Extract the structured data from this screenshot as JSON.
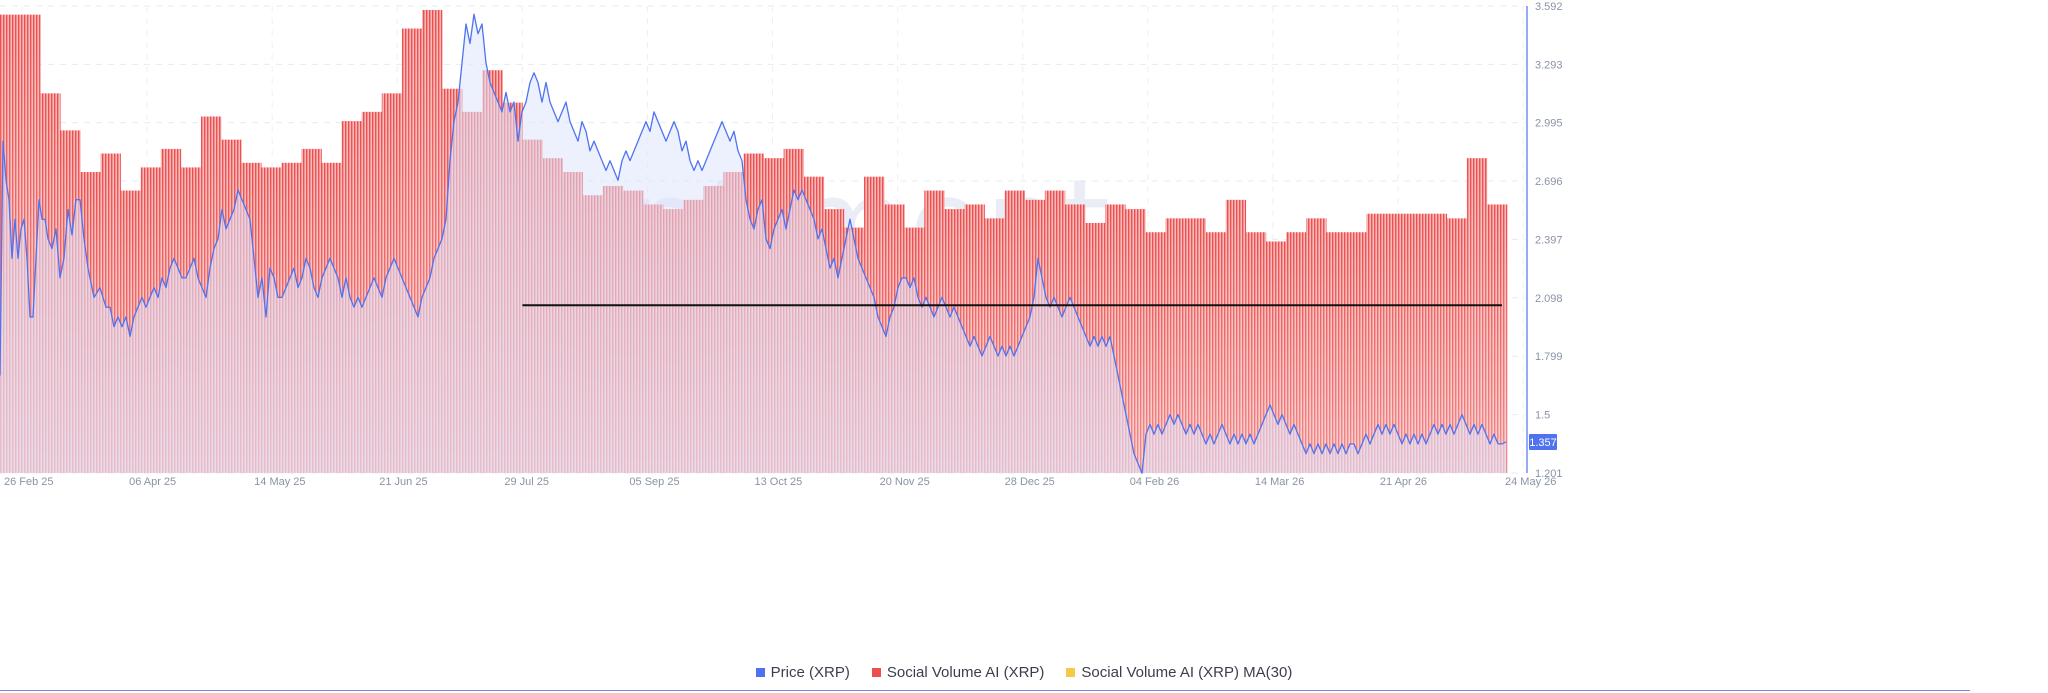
{
  "chart_data": {
    "type": "bar",
    "watermark": "santiment",
    "x_ticks": [
      "26 Feb 25",
      "06 Apr 25",
      "14 May 25",
      "21 Jun 25",
      "29 Jul 25",
      "05 Sep 25",
      "13 Oct 25",
      "20 Nov 25",
      "28 Dec 25",
      "04 Feb 26",
      "14 Mar 26",
      "21 Apr 26",
      "24 May 26"
    ],
    "y_right_ticks": [
      "3.592",
      "3.293",
      "2.995",
      "2.696",
      "2.397",
      "2.098",
      "1.799",
      "1.5",
      "1.201"
    ],
    "y_right_range": [
      1.201,
      3.592
    ],
    "current_price_label": "1.357",
    "resistance_level": 2.06,
    "resistance_start_index": 26,
    "grid": true,
    "legend_position": "bottom",
    "colors": {
      "price": "#4f73f0",
      "price_fill": "#dfe4fb",
      "social_volume": "#ee4e4e",
      "social_volume_ma": "#f7c948",
      "resistance": "#111111"
    },
    "social_volume_relative": [
      0.99,
      0.99,
      0.82,
      0.74,
      0.65,
      0.69,
      0.61,
      0.66,
      0.7,
      0.66,
      0.77,
      0.72,
      0.67,
      0.66,
      0.67,
      0.7,
      0.67,
      0.76,
      0.78,
      0.82,
      0.96,
      1.0,
      0.83,
      0.78,
      0.87,
      0.8,
      0.72,
      0.68,
      0.65,
      0.6,
      0.62,
      0.61,
      0.58,
      0.57,
      0.59,
      0.62,
      0.65,
      0.69,
      0.68,
      0.7,
      0.64,
      0.57,
      0.53,
      0.64,
      0.58,
      0.53,
      0.61,
      0.57,
      0.58,
      0.55,
      0.61,
      0.59,
      0.61,
      0.58,
      0.54,
      0.58,
      0.57,
      0.52,
      0.55,
      0.55,
      0.52,
      0.59,
      0.52,
      0.5,
      0.52,
      0.55,
      0.52,
      0.52,
      0.56,
      0.56,
      0.56,
      0.56,
      0.55,
      0.68,
      0.58
    ],
    "price_series": [
      [
        0,
        1.7
      ],
      [
        3,
        2.9
      ],
      [
        6,
        2.7
      ],
      [
        9,
        2.6
      ],
      [
        12,
        2.3
      ],
      [
        15,
        2.5
      ],
      [
        18,
        2.3
      ],
      [
        21,
        2.45
      ],
      [
        24,
        2.5
      ],
      [
        27,
        2.3
      ],
      [
        30,
        2.0
      ],
      [
        33,
        2.0
      ],
      [
        36,
        2.3
      ],
      [
        39,
        2.6
      ],
      [
        42,
        2.5
      ],
      [
        45,
        2.5
      ],
      [
        48,
        2.4
      ],
      [
        52,
        2.35
      ],
      [
        56,
        2.45
      ],
      [
        60,
        2.2
      ],
      [
        64,
        2.3
      ],
      [
        68,
        2.55
      ],
      [
        72,
        2.42
      ],
      [
        76,
        2.6
      ],
      [
        80,
        2.6
      ],
      [
        84,
        2.4
      ],
      [
        88,
        2.25
      ],
      [
        94,
        2.1
      ],
      [
        100,
        2.15
      ],
      [
        106,
        2.05
      ],
      [
        110,
        2.05
      ],
      [
        114,
        1.95
      ],
      [
        118,
        2.0
      ],
      [
        122,
        1.95
      ],
      [
        126,
        2.0
      ],
      [
        130,
        1.9
      ],
      [
        134,
        2.0
      ],
      [
        138,
        2.05
      ],
      [
        142,
        2.1
      ],
      [
        146,
        2.05
      ],
      [
        150,
        2.1
      ],
      [
        154,
        2.15
      ],
      [
        158,
        2.1
      ],
      [
        162,
        2.2
      ],
      [
        166,
        2.15
      ],
      [
        170,
        2.25
      ],
      [
        174,
        2.3
      ],
      [
        178,
        2.25
      ],
      [
        182,
        2.2
      ],
      [
        186,
        2.2
      ],
      [
        190,
        2.25
      ],
      [
        194,
        2.3
      ],
      [
        198,
        2.2
      ],
      [
        202,
        2.15
      ],
      [
        206,
        2.1
      ],
      [
        210,
        2.25
      ],
      [
        214,
        2.35
      ],
      [
        218,
        2.4
      ],
      [
        222,
        2.55
      ],
      [
        226,
        2.45
      ],
      [
        230,
        2.5
      ],
      [
        234,
        2.55
      ],
      [
        238,
        2.65
      ],
      [
        242,
        2.6
      ],
      [
        246,
        2.55
      ],
      [
        250,
        2.5
      ],
      [
        254,
        2.3
      ],
      [
        258,
        2.1
      ],
      [
        262,
        2.2
      ],
      [
        266,
        2.0
      ],
      [
        270,
        2.25
      ],
      [
        274,
        2.2
      ],
      [
        278,
        2.1
      ],
      [
        282,
        2.1
      ],
      [
        286,
        2.15
      ],
      [
        290,
        2.2
      ],
      [
        294,
        2.25
      ],
      [
        298,
        2.15
      ],
      [
        302,
        2.2
      ],
      [
        306,
        2.3
      ],
      [
        310,
        2.25
      ],
      [
        314,
        2.15
      ],
      [
        318,
        2.1
      ],
      [
        322,
        2.2
      ],
      [
        326,
        2.25
      ],
      [
        330,
        2.3
      ],
      [
        334,
        2.25
      ],
      [
        338,
        2.2
      ],
      [
        342,
        2.1
      ],
      [
        346,
        2.2
      ],
      [
        350,
        2.1
      ],
      [
        354,
        2.05
      ],
      [
        358,
        2.1
      ],
      [
        362,
        2.05
      ],
      [
        366,
        2.1
      ],
      [
        370,
        2.15
      ],
      [
        374,
        2.2
      ],
      [
        378,
        2.15
      ],
      [
        382,
        2.1
      ],
      [
        386,
        2.2
      ],
      [
        390,
        2.25
      ],
      [
        394,
        2.3
      ],
      [
        398,
        2.25
      ],
      [
        402,
        2.2
      ],
      [
        406,
        2.15
      ],
      [
        410,
        2.1
      ],
      [
        414,
        2.05
      ],
      [
        418,
        2.0
      ],
      [
        422,
        2.1
      ],
      [
        426,
        2.15
      ],
      [
        430,
        2.2
      ],
      [
        434,
        2.3
      ],
      [
        438,
        2.35
      ],
      [
        442,
        2.4
      ],
      [
        446,
        2.5
      ],
      [
        450,
        2.8
      ],
      [
        454,
        3.0
      ],
      [
        458,
        3.1
      ],
      [
        462,
        3.3
      ],
      [
        466,
        3.5
      ],
      [
        470,
        3.4
      ],
      [
        474,
        3.55
      ],
      [
        478,
        3.45
      ],
      [
        482,
        3.5
      ],
      [
        486,
        3.3
      ],
      [
        490,
        3.2
      ],
      [
        494,
        3.15
      ],
      [
        498,
        3.1
      ],
      [
        502,
        3.05
      ],
      [
        506,
        3.15
      ],
      [
        510,
        3.05
      ],
      [
        514,
        3.1
      ],
      [
        518,
        2.9
      ],
      [
        522,
        3.05
      ],
      [
        526,
        3.1
      ],
      [
        530,
        3.2
      ],
      [
        534,
        3.25
      ],
      [
        538,
        3.2
      ],
      [
        542,
        3.1
      ],
      [
        546,
        3.2
      ],
      [
        550,
        3.1
      ],
      [
        554,
        3.05
      ],
      [
        558,
        3.0
      ],
      [
        562,
        3.05
      ],
      [
        566,
        3.1
      ],
      [
        570,
        3.0
      ],
      [
        574,
        2.95
      ],
      [
        578,
        2.9
      ],
      [
        582,
        3.0
      ],
      [
        586,
        2.95
      ],
      [
        590,
        2.85
      ],
      [
        594,
        2.9
      ],
      [
        598,
        2.85
      ],
      [
        602,
        2.8
      ],
      [
        606,
        2.75
      ],
      [
        610,
        2.8
      ],
      [
        614,
        2.75
      ],
      [
        618,
        2.7
      ],
      [
        622,
        2.8
      ],
      [
        626,
        2.85
      ],
      [
        630,
        2.8
      ],
      [
        634,
        2.85
      ],
      [
        638,
        2.9
      ],
      [
        642,
        2.95
      ],
      [
        646,
        3.0
      ],
      [
        650,
        2.95
      ],
      [
        654,
        3.05
      ],
      [
        658,
        3.0
      ],
      [
        662,
        2.95
      ],
      [
        666,
        2.9
      ],
      [
        670,
        2.95
      ],
      [
        674,
        3.0
      ],
      [
        678,
        2.95
      ],
      [
        682,
        2.85
      ],
      [
        686,
        2.9
      ],
      [
        690,
        2.8
      ],
      [
        694,
        2.75
      ],
      [
        698,
        2.8
      ],
      [
        702,
        2.75
      ],
      [
        706,
        2.8
      ],
      [
        710,
        2.85
      ],
      [
        714,
        2.9
      ],
      [
        718,
        2.95
      ],
      [
        722,
        3.0
      ],
      [
        726,
        2.95
      ],
      [
        730,
        2.9
      ],
      [
        734,
        2.95
      ],
      [
        738,
        2.85
      ],
      [
        742,
        2.8
      ],
      [
        746,
        2.6
      ],
      [
        750,
        2.5
      ],
      [
        754,
        2.45
      ],
      [
        758,
        2.55
      ],
      [
        762,
        2.6
      ],
      [
        766,
        2.4
      ],
      [
        770,
        2.35
      ],
      [
        774,
        2.45
      ],
      [
        778,
        2.5
      ],
      [
        782,
        2.55
      ],
      [
        786,
        2.45
      ],
      [
        790,
        2.55
      ],
      [
        794,
        2.65
      ],
      [
        798,
        2.6
      ],
      [
        802,
        2.65
      ],
      [
        806,
        2.6
      ],
      [
        810,
        2.55
      ],
      [
        814,
        2.5
      ],
      [
        818,
        2.4
      ],
      [
        822,
        2.45
      ],
      [
        826,
        2.35
      ],
      [
        830,
        2.25
      ],
      [
        834,
        2.3
      ],
      [
        838,
        2.2
      ],
      [
        842,
        2.3
      ],
      [
        846,
        2.4
      ],
      [
        850,
        2.5
      ],
      [
        854,
        2.4
      ],
      [
        858,
        2.3
      ],
      [
        862,
        2.25
      ],
      [
        866,
        2.2
      ],
      [
        870,
        2.15
      ],
      [
        874,
        2.1
      ],
      [
        878,
        2.0
      ],
      [
        882,
        1.95
      ],
      [
        886,
        1.9
      ],
      [
        890,
        2.0
      ],
      [
        894,
        2.05
      ],
      [
        898,
        2.15
      ],
      [
        902,
        2.2
      ],
      [
        906,
        2.2
      ],
      [
        910,
        2.15
      ],
      [
        914,
        2.2
      ],
      [
        918,
        2.1
      ],
      [
        922,
        2.05
      ],
      [
        926,
        2.1
      ],
      [
        930,
        2.05
      ],
      [
        934,
        2.0
      ],
      [
        938,
        2.05
      ],
      [
        942,
        2.1
      ],
      [
        946,
        2.05
      ],
      [
        950,
        2.0
      ],
      [
        954,
        2.05
      ],
      [
        958,
        2.0
      ],
      [
        962,
        1.95
      ],
      [
        966,
        1.9
      ],
      [
        970,
        1.85
      ],
      [
        974,
        1.9
      ],
      [
        978,
        1.85
      ],
      [
        982,
        1.8
      ],
      [
        986,
        1.85
      ],
      [
        990,
        1.9
      ],
      [
        994,
        1.85
      ],
      [
        998,
        1.8
      ],
      [
        1002,
        1.85
      ],
      [
        1006,
        1.8
      ],
      [
        1010,
        1.85
      ],
      [
        1014,
        1.8
      ],
      [
        1018,
        1.85
      ],
      [
        1022,
        1.9
      ],
      [
        1026,
        1.95
      ],
      [
        1030,
        2.0
      ],
      [
        1034,
        2.1
      ],
      [
        1038,
        2.3
      ],
      [
        1042,
        2.2
      ],
      [
        1046,
        2.1
      ],
      [
        1050,
        2.05
      ],
      [
        1054,
        2.1
      ],
      [
        1058,
        2.05
      ],
      [
        1062,
        2.0
      ],
      [
        1066,
        2.05
      ],
      [
        1070,
        2.1
      ],
      [
        1074,
        2.05
      ],
      [
        1078,
        2.0
      ],
      [
        1082,
        1.95
      ],
      [
        1086,
        1.9
      ],
      [
        1090,
        1.85
      ],
      [
        1094,
        1.9
      ],
      [
        1098,
        1.85
      ],
      [
        1102,
        1.9
      ],
      [
        1106,
        1.85
      ],
      [
        1110,
        1.9
      ],
      [
        1114,
        1.8
      ],
      [
        1118,
        1.7
      ],
      [
        1122,
        1.6
      ],
      [
        1126,
        1.5
      ],
      [
        1130,
        1.4
      ],
      [
        1134,
        1.3
      ],
      [
        1138,
        1.25
      ],
      [
        1142,
        1.2
      ],
      [
        1146,
        1.4
      ],
      [
        1150,
        1.45
      ],
      [
        1154,
        1.4
      ],
      [
        1158,
        1.45
      ],
      [
        1162,
        1.4
      ],
      [
        1166,
        1.45
      ],
      [
        1170,
        1.5
      ],
      [
        1174,
        1.45
      ],
      [
        1178,
        1.5
      ],
      [
        1182,
        1.45
      ],
      [
        1186,
        1.4
      ],
      [
        1190,
        1.45
      ],
      [
        1194,
        1.4
      ],
      [
        1198,
        1.45
      ],
      [
        1202,
        1.4
      ],
      [
        1206,
        1.35
      ],
      [
        1210,
        1.4
      ],
      [
        1214,
        1.35
      ],
      [
        1218,
        1.4
      ],
      [
        1222,
        1.45
      ],
      [
        1226,
        1.4
      ],
      [
        1230,
        1.35
      ],
      [
        1234,
        1.4
      ],
      [
        1238,
        1.35
      ],
      [
        1242,
        1.4
      ],
      [
        1246,
        1.35
      ],
      [
        1250,
        1.4
      ],
      [
        1254,
        1.35
      ],
      [
        1258,
        1.4
      ],
      [
        1262,
        1.45
      ],
      [
        1266,
        1.5
      ],
      [
        1270,
        1.55
      ],
      [
        1274,
        1.5
      ],
      [
        1278,
        1.45
      ],
      [
        1282,
        1.5
      ],
      [
        1286,
        1.45
      ],
      [
        1290,
        1.4
      ],
      [
        1294,
        1.45
      ],
      [
        1298,
        1.4
      ],
      [
        1302,
        1.35
      ],
      [
        1306,
        1.3
      ],
      [
        1310,
        1.35
      ],
      [
        1314,
        1.3
      ],
      [
        1318,
        1.35
      ],
      [
        1322,
        1.3
      ],
      [
        1326,
        1.35
      ],
      [
        1330,
        1.3
      ],
      [
        1334,
        1.35
      ],
      [
        1338,
        1.3
      ],
      [
        1342,
        1.35
      ],
      [
        1346,
        1.3
      ],
      [
        1350,
        1.35
      ],
      [
        1354,
        1.35
      ],
      [
        1358,
        1.3
      ],
      [
        1362,
        1.35
      ],
      [
        1366,
        1.4
      ],
      [
        1370,
        1.35
      ],
      [
        1374,
        1.4
      ],
      [
        1378,
        1.45
      ],
      [
        1382,
        1.4
      ],
      [
        1386,
        1.45
      ],
      [
        1390,
        1.4
      ],
      [
        1394,
        1.45
      ],
      [
        1398,
        1.4
      ],
      [
        1402,
        1.35
      ],
      [
        1406,
        1.4
      ],
      [
        1410,
        1.35
      ],
      [
        1414,
        1.4
      ],
      [
        1418,
        1.35
      ],
      [
        1422,
        1.4
      ],
      [
        1426,
        1.35
      ],
      [
        1430,
        1.4
      ],
      [
        1434,
        1.45
      ],
      [
        1438,
        1.4
      ],
      [
        1442,
        1.45
      ],
      [
        1446,
        1.4
      ],
      [
        1450,
        1.45
      ],
      [
        1454,
        1.4
      ],
      [
        1458,
        1.45
      ],
      [
        1462,
        1.5
      ],
      [
        1466,
        1.45
      ],
      [
        1470,
        1.4
      ],
      [
        1474,
        1.45
      ],
      [
        1478,
        1.4
      ],
      [
        1482,
        1.45
      ],
      [
        1486,
        1.4
      ],
      [
        1490,
        1.35
      ],
      [
        1494,
        1.4
      ],
      [
        1498,
        1.35
      ],
      [
        1502,
        1.35
      ],
      [
        1506,
        1.36
      ]
    ]
  },
  "legend": {
    "items": [
      {
        "label": "Price (XRP)",
        "color": "#4f73f0"
      },
      {
        "label": "Social Volume AI (XRP)",
        "color": "#ee4e4e"
      },
      {
        "label": "Social Volume AI (XRP) MA(30)",
        "color": "#f7c948"
      }
    ]
  }
}
